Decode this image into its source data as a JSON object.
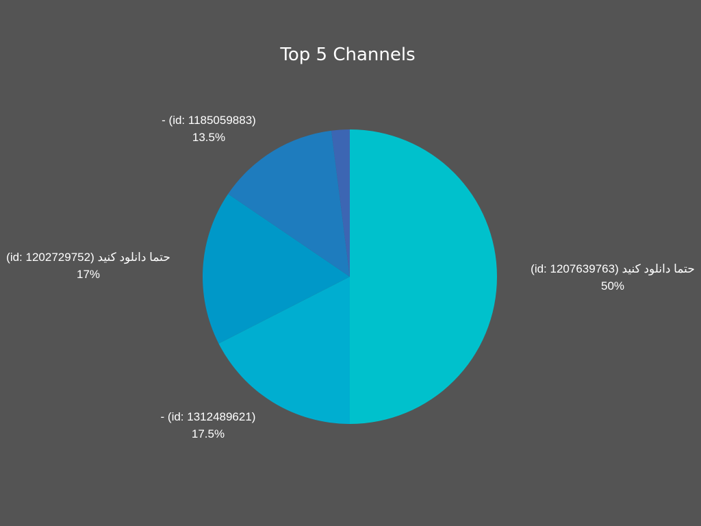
{
  "chart_data": {
    "type": "pie",
    "title": "Top 5 Channels",
    "background": "#545454",
    "slices": [
      {
        "label": "حتما دانلود کنید (id: 1207639763)",
        "value": 50,
        "percent_label": "50%",
        "color": "#00c1cc"
      },
      {
        "label": "- (id: 1312489621)",
        "value": 17.5,
        "percent_label": "17.5%",
        "color": "#00aed0"
      },
      {
        "label": "حتما دانلود کنید (id: 1202729752)",
        "value": 17,
        "percent_label": "17%",
        "color": "#0098c8"
      },
      {
        "label": "- (id: 1185059883)",
        "value": 13.5,
        "percent_label": "13.5%",
        "color": "#1e7cbe"
      },
      {
        "label": "",
        "value": 2,
        "percent_label": "",
        "color": "#3c66b3"
      }
    ]
  }
}
